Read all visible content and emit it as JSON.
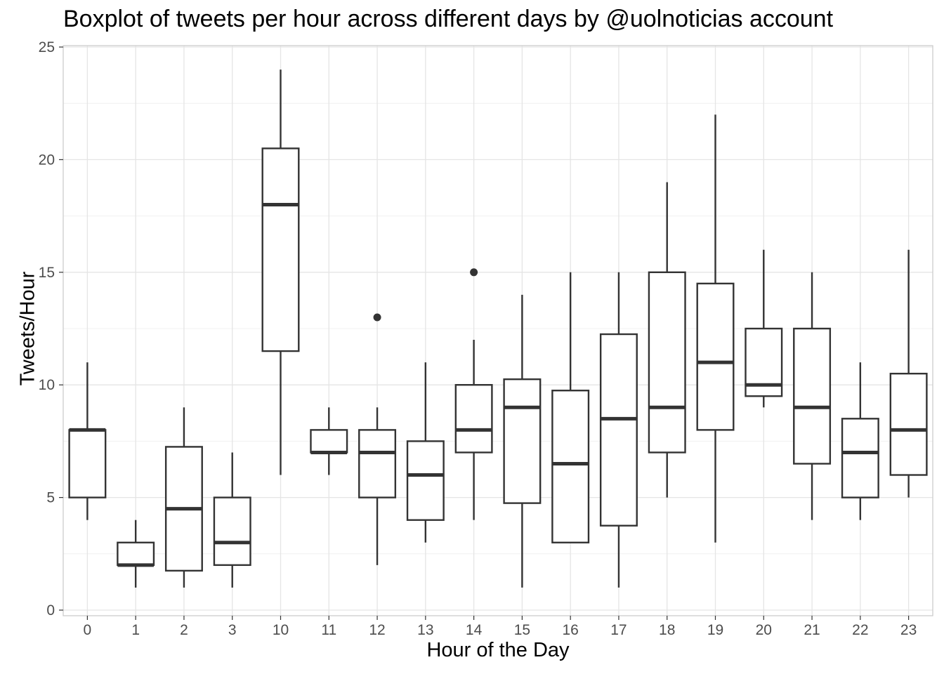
{
  "chart_data": {
    "type": "boxplot",
    "title": "Boxplot of tweets per hour across different days by @uolnoticias account",
    "xlabel": "Hour of the Day",
    "ylabel": "Tweets/Hour",
    "ylim": [
      0,
      25
    ],
    "yticks": [
      0,
      5,
      10,
      15,
      20,
      25
    ],
    "grid": true,
    "categories": [
      "0",
      "1",
      "2",
      "3",
      "10",
      "11",
      "12",
      "13",
      "14",
      "15",
      "16",
      "17",
      "18",
      "19",
      "20",
      "21",
      "22",
      "23"
    ],
    "boxes": [
      {
        "x": "0",
        "whisker_low": 4,
        "q1": 5,
        "median": 8,
        "q3": 8,
        "whisker_high": 11,
        "outliers": []
      },
      {
        "x": "1",
        "whisker_low": 1,
        "q1": 2,
        "median": 2,
        "q3": 3,
        "whisker_high": 4,
        "outliers": []
      },
      {
        "x": "2",
        "whisker_low": 1,
        "q1": 1.75,
        "median": 4.5,
        "q3": 7.25,
        "whisker_high": 9,
        "outliers": []
      },
      {
        "x": "3",
        "whisker_low": 1,
        "q1": 2,
        "median": 3,
        "q3": 5,
        "whisker_high": 7,
        "outliers": []
      },
      {
        "x": "10",
        "whisker_low": 6,
        "q1": 11.5,
        "median": 18,
        "q3": 20.5,
        "whisker_high": 24,
        "outliers": []
      },
      {
        "x": "11",
        "whisker_low": 6,
        "q1": 7,
        "median": 7,
        "q3": 8,
        "whisker_high": 9,
        "outliers": []
      },
      {
        "x": "12",
        "whisker_low": 2,
        "q1": 5,
        "median": 7,
        "q3": 8,
        "whisker_high": 9,
        "outliers": [
          13
        ]
      },
      {
        "x": "13",
        "whisker_low": 3,
        "q1": 4,
        "median": 6,
        "q3": 7.5,
        "whisker_high": 11,
        "outliers": []
      },
      {
        "x": "14",
        "whisker_low": 4,
        "q1": 7,
        "median": 8,
        "q3": 10,
        "whisker_high": 12,
        "outliers": [
          15
        ]
      },
      {
        "x": "15",
        "whisker_low": 1,
        "q1": 4.75,
        "median": 9,
        "q3": 10.25,
        "whisker_high": 14,
        "outliers": []
      },
      {
        "x": "16",
        "whisker_low": 3,
        "q1": 3,
        "median": 6.5,
        "q3": 9.75,
        "whisker_high": 15,
        "outliers": []
      },
      {
        "x": "17",
        "whisker_low": 1,
        "q1": 3.75,
        "median": 8.5,
        "q3": 12.25,
        "whisker_high": 15,
        "outliers": []
      },
      {
        "x": "18",
        "whisker_low": 5,
        "q1": 7,
        "median": 9,
        "q3": 15,
        "whisker_high": 19,
        "outliers": []
      },
      {
        "x": "19",
        "whisker_low": 3,
        "q1": 8,
        "median": 11,
        "q3": 14.5,
        "whisker_high": 22,
        "outliers": []
      },
      {
        "x": "20",
        "whisker_low": 9,
        "q1": 9.5,
        "median": 10,
        "q3": 12.5,
        "whisker_high": 16,
        "outliers": []
      },
      {
        "x": "21",
        "whisker_low": 4,
        "q1": 6.5,
        "median": 9,
        "q3": 12.5,
        "whisker_high": 15,
        "outliers": []
      },
      {
        "x": "22",
        "whisker_low": 4,
        "q1": 5,
        "median": 7,
        "q3": 8.5,
        "whisker_high": 11,
        "outliers": []
      },
      {
        "x": "23",
        "whisker_low": 5,
        "q1": 6,
        "median": 8,
        "q3": 10.5,
        "whisker_high": 16,
        "outliers": []
      }
    ],
    "colors": {
      "box_stroke": "#333333",
      "grid": "#e5e5e5",
      "panel_border": "#cccccc",
      "tick_text": "#4d4d4d"
    }
  }
}
